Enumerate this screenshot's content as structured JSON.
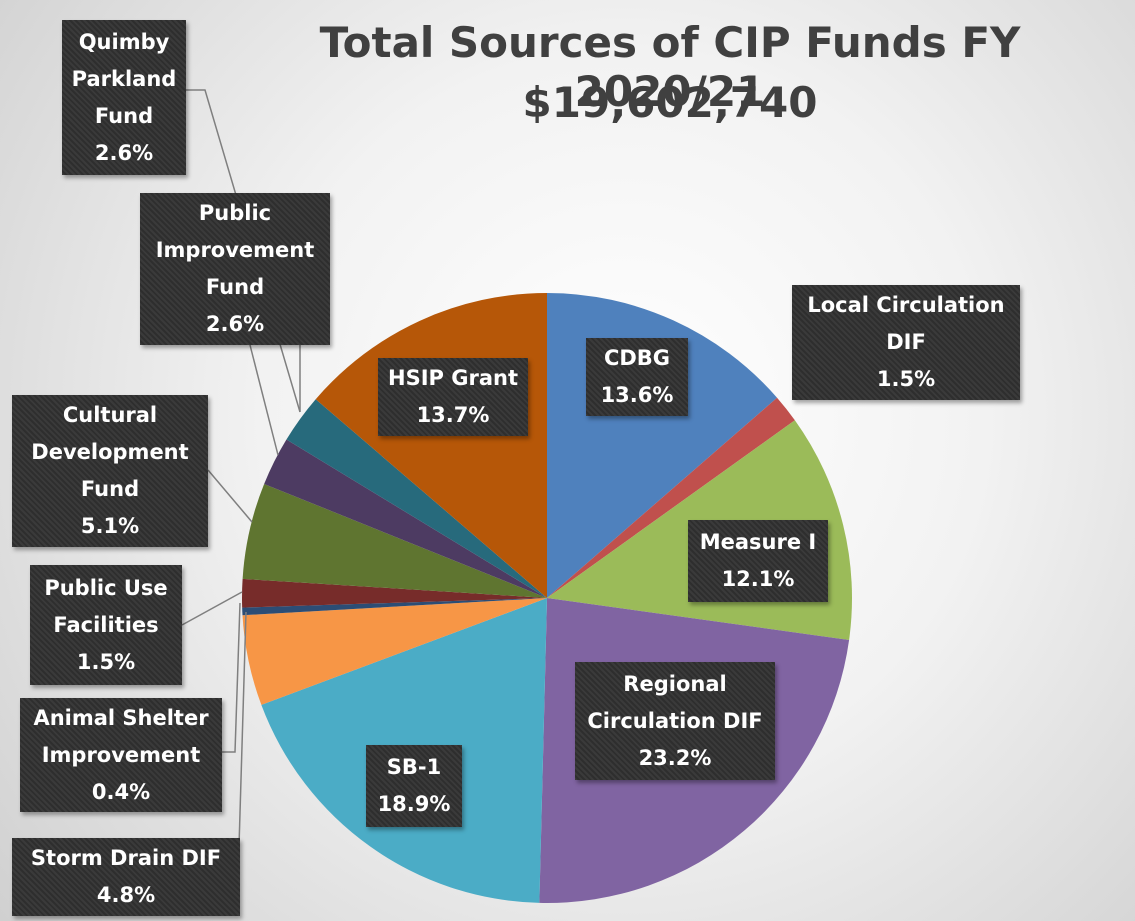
{
  "chart_data": {
    "type": "pie",
    "title": "Total Sources of CIP Funds FY 2020/21",
    "subtitle": "$19,602,740",
    "categories": [
      "CDBG",
      "Local Circulation DIF",
      "Measure I",
      "Regional Circulation DIF",
      "SB-1",
      "Storm Drain DIF",
      "Animal Shelter Improvement",
      "Public Use Facilities",
      "Cultural Development Fund",
      "Public Improvement Fund",
      "Quimby Parkland Fund",
      "HSIP Grant"
    ],
    "values": [
      13.6,
      1.5,
      12.1,
      23.2,
      18.9,
      4.8,
      0.4,
      1.5,
      5.1,
      2.6,
      2.6,
      13.7
    ],
    "value_labels": [
      "13.6%",
      "1.5%",
      "12.1%",
      "23.2%",
      "18.9%",
      "4.8%",
      "0.4%",
      "1.5%",
      "5.1%",
      "2.6%",
      "2.6%",
      "13.7%"
    ],
    "colors": [
      "#4f81bd",
      "#c0504d",
      "#9bbb59",
      "#8064a2",
      "#4bacc6",
      "#f79646",
      "#2c4d75",
      "#772c2a",
      "#5f7530",
      "#4d3b62",
      "#276a7c",
      "#b65708"
    ]
  }
}
